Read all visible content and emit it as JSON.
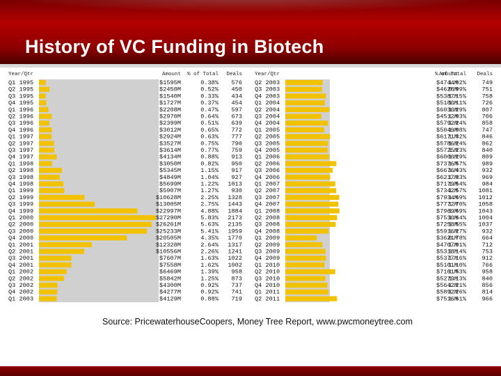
{
  "slide": {
    "title": "History of VC Funding in Biotech",
    "source": "Source: PricewaterhouseCoopers, Money Tree Report, www.pwcmoneytree.com"
  },
  "colors": {
    "header_red": "#a40000",
    "bar_fill": "#f2c200",
    "bar_bg": "#d0d0d0"
  },
  "chart_data": [
    {
      "type": "table",
      "columns": [
        "Year/Qtr",
        "Amount",
        "% of Total",
        "Deals"
      ],
      "rows": [
        [
          "Q1 1995",
          "$1595M",
          "0.38%",
          "576"
        ],
        [
          "Q2 1995",
          "$2450M",
          "0.52%",
          "450"
        ],
        [
          "Q3 1995",
          "$1540M",
          "0.33%",
          "434"
        ],
        [
          "Q4 1995",
          "$1727M",
          "0.37%",
          "454"
        ],
        [
          "Q1 1996",
          "$2208M",
          "0.47%",
          "597"
        ],
        [
          "Q2 1996",
          "$2970M",
          "0.64%",
          "673"
        ],
        [
          "Q3 1996",
          "$2399M",
          "0.51%",
          "639"
        ],
        [
          "Q4 1996",
          "$3012M",
          "0.65%",
          "772"
        ],
        [
          "Q1 1997",
          "$2924M",
          "0.63%",
          "777"
        ],
        [
          "Q2 1997",
          "$3527M",
          "0.75%",
          "790"
        ],
        [
          "Q3 1997",
          "$3614M",
          "0.77%",
          "759"
        ],
        [
          "Q4 1997",
          "$4134M",
          "0.88%",
          "913"
        ],
        [
          "Q1 1998",
          "$3050M",
          "0.82%",
          "950"
        ],
        [
          "Q2 1998",
          "$5345M",
          "1.15%",
          "917"
        ],
        [
          "Q3 1998",
          "$4849M",
          "1.04%",
          "927"
        ],
        [
          "Q4 1998",
          "$5699M",
          "1.22%",
          "1013"
        ],
        [
          "Q1 1999",
          "$5907M",
          "1.27%",
          "930"
        ],
        [
          "Q2 1999",
          "$10628M",
          "2.25%",
          "1328"
        ],
        [
          "Q3 1999",
          "$13005M",
          "2.75%",
          "1443"
        ],
        [
          "Q4 1999",
          "$22997M",
          "4.88%",
          "1884"
        ],
        [
          "Q1 2000",
          "$27290M",
          "5.83%",
          "2173"
        ],
        [
          "Q2 2000",
          "$26261M",
          "5.63%",
          "2135"
        ],
        [
          "Q3 2000",
          "$25233M",
          "5.41%",
          "1959"
        ],
        [
          "Q4 2000",
          "$20505M",
          "4.35%",
          "1770"
        ],
        [
          "Q1 2001",
          "$12328M",
          "2.64%",
          "1317"
        ],
        [
          "Q2 2001",
          "$10556M",
          "2.26%",
          "1241"
        ],
        [
          "Q3 2001",
          "$7607M",
          "1.63%",
          "1022"
        ],
        [
          "Q4 2001",
          "$7558M",
          "1.62%",
          "1002"
        ],
        [
          "Q1 2002",
          "$6469M",
          "1.39%",
          "958"
        ],
        [
          "Q2 2002",
          "$5842M",
          "1.25%",
          "873"
        ],
        [
          "Q3 2002",
          "$4300M",
          "0.92%",
          "737"
        ],
        [
          "Q4 2002",
          "$4277M",
          "0.92%",
          "741"
        ],
        [
          "Q1 2003",
          "$4129M",
          "0.88%",
          "719"
        ]
      ]
    },
    {
      "type": "table",
      "columns": [
        "Year/Qtr",
        "Amount",
        "% of Total",
        "Deals"
      ],
      "rows": [
        [
          "Q2 2003",
          "$4744M",
          "1.02%",
          "749"
        ],
        [
          "Q3 2003",
          "$4628M",
          "0.99%",
          "751"
        ],
        [
          "Q4 2003",
          "$5387M",
          "1.15%",
          "758"
        ],
        [
          "Q1 2004",
          "$5180M",
          "1.11%",
          "726"
        ],
        [
          "Q2 2004",
          "$6030M",
          "1.29%",
          "807"
        ],
        [
          "Q3 2004",
          "$4512M",
          "1.03%",
          "706"
        ],
        [
          "Q4 2004",
          "$5792M",
          "1.24%",
          "858"
        ],
        [
          "Q1 2005",
          "$5049M",
          "1.08%",
          "747"
        ],
        [
          "Q2 2005",
          "$6171M",
          "1.32%",
          "846"
        ],
        [
          "Q3 2005",
          "$5786M",
          "1.24%",
          "862"
        ],
        [
          "Q4 2005",
          "$5725M",
          "1.23%",
          "840"
        ],
        [
          "Q1 2006",
          "$6000M",
          "1.29%",
          "809"
        ],
        [
          "Q2 2006",
          "$7376M",
          "1.57%",
          "989"
        ],
        [
          "Q3 2006",
          "$6676M",
          "1.43%",
          "932"
        ],
        [
          "Q4 2006",
          "$6217M",
          "1.33%",
          "969"
        ],
        [
          "Q1 2007",
          "$7179M",
          "1.54%",
          "984"
        ],
        [
          "Q2 2007",
          "$7342M",
          "1.57%",
          "1081"
        ],
        [
          "Q3 2007",
          "$7934M",
          "1.69%",
          "1012"
        ],
        [
          "Q4 2007",
          "$7772M",
          "1.70%",
          "1058"
        ],
        [
          "Q1 2008",
          "$7969M",
          "1.69%",
          "1043"
        ],
        [
          "Q2 2008",
          "$7530M",
          "1.64%",
          "1004"
        ],
        [
          "Q3 2008",
          "$7258M",
          "1.55%",
          "1037"
        ],
        [
          "Q4 2008",
          "$5916M",
          "1.27%",
          "932"
        ],
        [
          "Q1 2009",
          "$3621M",
          "0.78%",
          "664"
        ],
        [
          "Q2 2009",
          "$4707M",
          "1.01%",
          "712"
        ],
        [
          "Q3 2009",
          "$5318M",
          "1.14%",
          "753"
        ],
        [
          "Q4 2009",
          "$5377M",
          "1.16%",
          "912"
        ],
        [
          "Q1 2010",
          "$5101M",
          "1.10%",
          "766"
        ],
        [
          "Q2 2010",
          "$7161M",
          "1.53%",
          "958"
        ],
        [
          "Q3 2010",
          "$5279M",
          "1.13%",
          "840"
        ],
        [
          "Q4 2010",
          "$5642M",
          "1.21%",
          "856"
        ],
        [
          "Q1 2011",
          "$5892M",
          "1.26%",
          "814"
        ],
        [
          "Q2 2011",
          "$7516M",
          "1.61%",
          "966"
        ]
      ]
    }
  ]
}
